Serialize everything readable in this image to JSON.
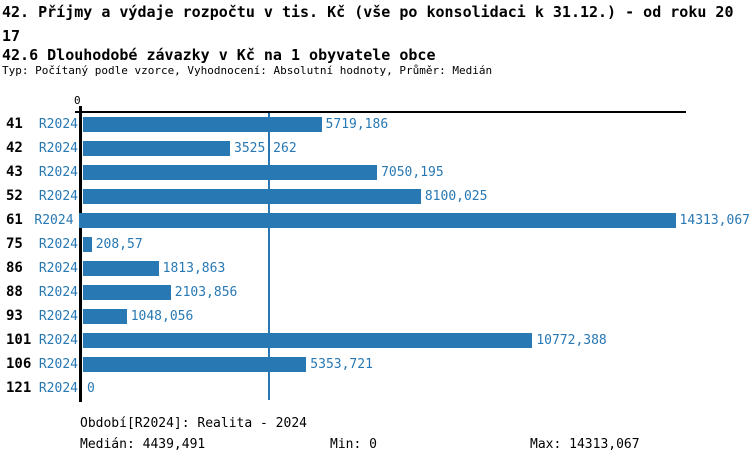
{
  "title": {
    "line1": "42. Příjmy a výdaje rozpočtu v tis. Kč (vše po konsolidaci k 31.12.) - od roku 20",
    "line1_overflow": "17",
    "line2": "42.6 Dlouhodobé závazky v Kč na 1 obyvatele obce",
    "subtitle": "Typ: Počítaný podle vzorce, Vyhodnocení: Absolutní hodnoty, Průměr: Medián"
  },
  "chart_data": {
    "type": "bar",
    "orientation": "horizontal",
    "title": "42.6 Dlouhodobé závazky v Kč na 1 obyvatele obce",
    "categories": [
      "41",
      "42",
      "43",
      "52",
      "61",
      "75",
      "86",
      "88",
      "93",
      "101",
      "106",
      "121"
    ],
    "series_label": "R2024",
    "values": [
      5719.186,
      3525.262,
      7050.195,
      8100.025,
      14313.067,
      208.57,
      1813.863,
      2103.856,
      1048.056,
      10772.388,
      5353.721,
      0
    ],
    "value_labels": [
      "5719,186",
      "3525,262",
      "7050,195",
      "8100,025",
      "14313,067",
      "208,57",
      "1813,863",
      "2103,856",
      "1048,056",
      "10772,388",
      "5353,721",
      "0"
    ],
    "xlim": [
      0,
      14313.067
    ],
    "zero_tick_label": "0",
    "median_value": 4439.491,
    "min_value": 0,
    "max_value": 14313.067,
    "grid": false,
    "legend": false,
    "bar_color": "#2878b4",
    "median_line_color": "#2878b4",
    "label_color": "#2878b4",
    "axis_color": "#000000"
  },
  "footer": {
    "period": "Období[R2024]: Realita - 2024",
    "median": "Medián: 4439,491",
    "min": "Min: 0",
    "max": "Max: 14313,067"
  }
}
